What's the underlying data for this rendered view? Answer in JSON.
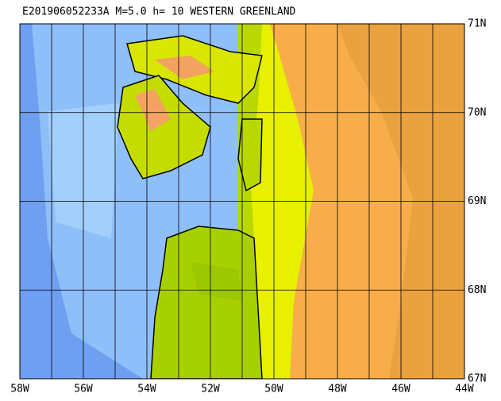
{
  "title": "E201906052233A  M=5.0  h= 10  WESTERN GREENLAND",
  "map": {
    "xlim": [
      -58,
      -44
    ],
    "ylim": [
      67,
      71
    ],
    "xticks": [
      {
        "value": -58,
        "label": "58W"
      },
      {
        "value": -56,
        "label": "56W"
      },
      {
        "value": -54,
        "label": "54W"
      },
      {
        "value": -52,
        "label": "52W"
      },
      {
        "value": -50,
        "label": "50W"
      },
      {
        "value": -48,
        "label": "48W"
      },
      {
        "value": -46,
        "label": "46W"
      },
      {
        "value": -44,
        "label": "44W"
      }
    ],
    "xminor": [
      -57,
      -55,
      -53,
      -51,
      -49,
      -47,
      -45
    ],
    "yticks": [
      {
        "value": 67,
        "label": "67N"
      },
      {
        "value": 68,
        "label": "68N"
      },
      {
        "value": 69,
        "label": "69N"
      },
      {
        "value": 70,
        "label": "70N"
      },
      {
        "value": 71,
        "label": "71N"
      }
    ]
  }
}
